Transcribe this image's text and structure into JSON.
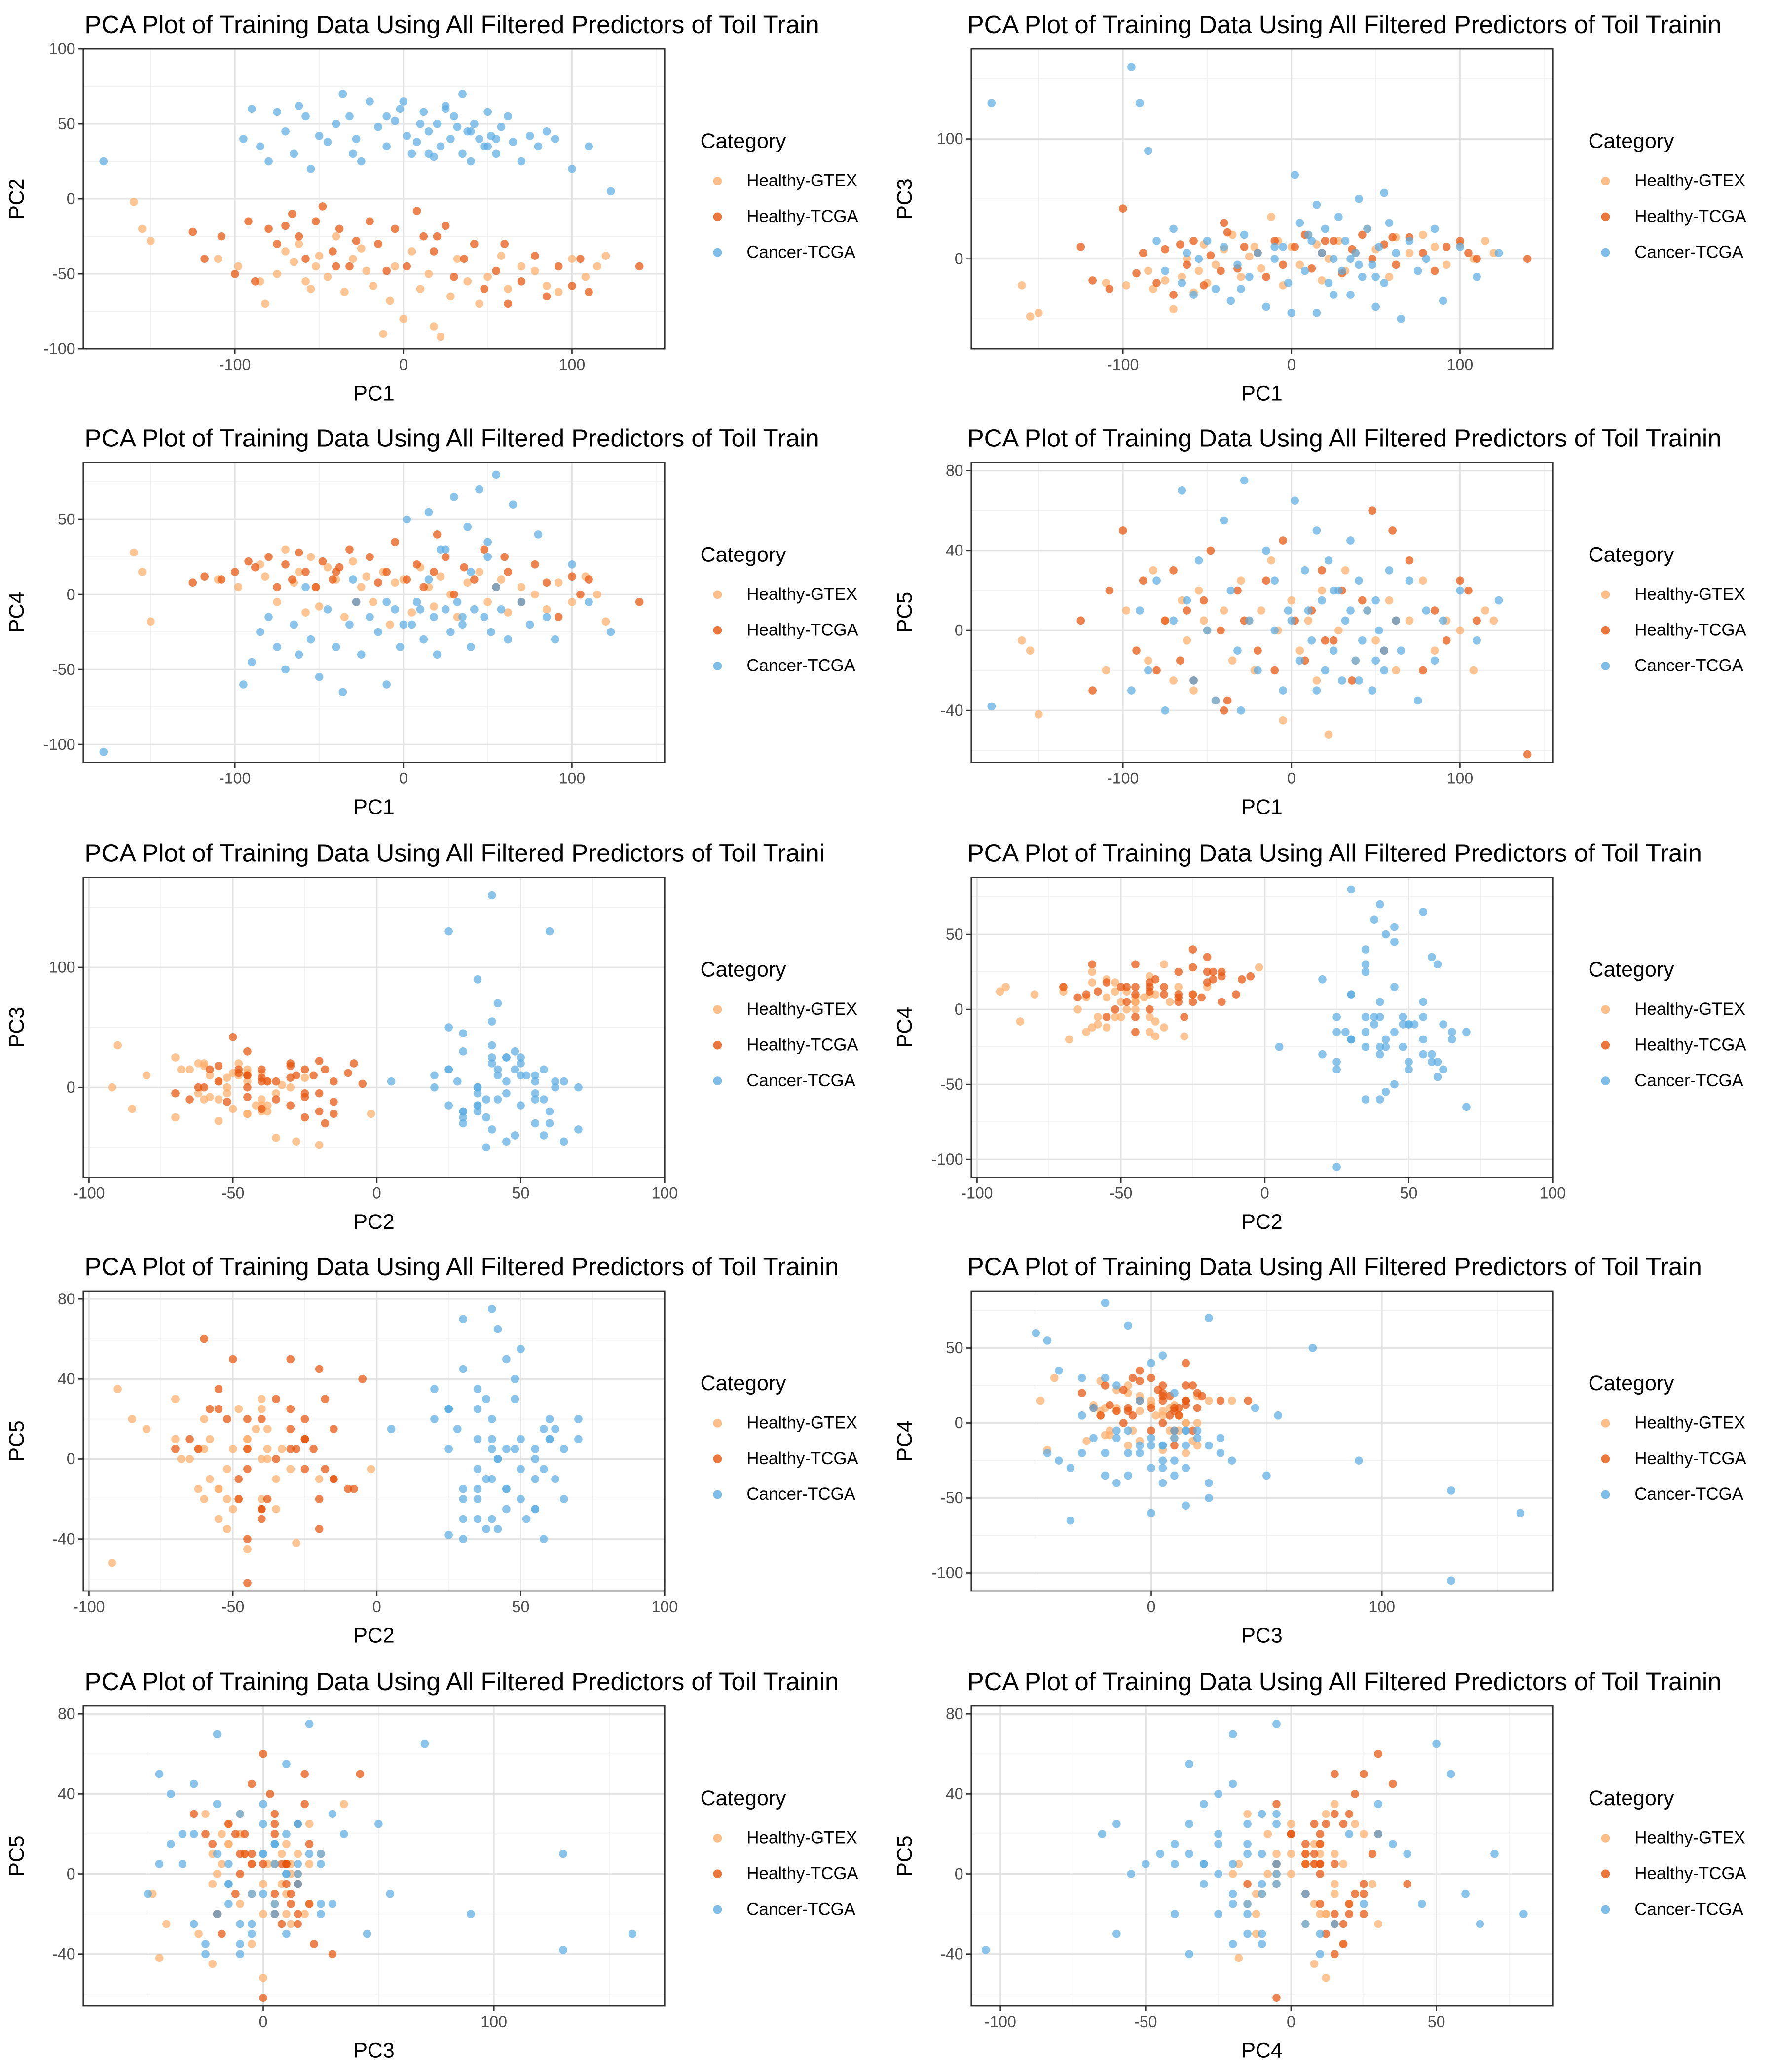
{
  "legend": {
    "title": "Category",
    "entries": [
      {
        "label": "Healthy-GTEX",
        "color": "#FDAE6B"
      },
      {
        "label": "Healthy-TCGA",
        "color": "#E6550D"
      },
      {
        "label": "Cancer-TCGA",
        "color": "#5DADE2"
      }
    ]
  },
  "chart_data": [
    {
      "type": "scatter",
      "title": "PCA Plot of Training Data Using All Filtered Predictors of Toil Train",
      "xlabel": "PC1",
      "ylabel": "PC2",
      "xlim": [
        -190,
        155
      ],
      "ylim": [
        -100,
        100
      ],
      "xticks": [
        -100,
        0,
        100
      ],
      "yticks": [
        -100,
        -50,
        0,
        50,
        100
      ],
      "grid": true,
      "legend_position": "right"
    },
    {
      "type": "scatter",
      "title": "PCA Plot of Training Data Using All Filtered Predictors of Toil Trainin",
      "xlabel": "PC1",
      "ylabel": "PC3",
      "xlim": [
        -190,
        155
      ],
      "ylim": [
        -75,
        175
      ],
      "xticks": [
        -100,
        0,
        100
      ],
      "yticks": [
        0,
        100
      ],
      "grid": true,
      "legend_position": "right"
    },
    {
      "type": "scatter",
      "title": "PCA Plot of Training Data Using All Filtered Predictors of Toil Train",
      "xlabel": "PC1",
      "ylabel": "PC4",
      "xlim": [
        -190,
        155
      ],
      "ylim": [
        -112,
        88
      ],
      "xticks": [
        -100,
        0,
        100
      ],
      "yticks": [
        -100,
        -50,
        0,
        50
      ],
      "grid": true,
      "legend_position": "right"
    },
    {
      "type": "scatter",
      "title": "PCA Plot of Training Data Using All Filtered Predictors of Toil Trainin",
      "xlabel": "PC1",
      "ylabel": "PC5",
      "xlim": [
        -190,
        155
      ],
      "ylim": [
        -66,
        84
      ],
      "xticks": [
        -100,
        0,
        100
      ],
      "yticks": [
        -40,
        0,
        40,
        80
      ],
      "grid": true,
      "legend_position": "right"
    },
    {
      "type": "scatter",
      "title": "PCA Plot of Training Data Using All Filtered Predictors of Toil Traini",
      "xlabel": "PC2",
      "ylabel": "PC3",
      "xlim": [
        -102,
        100
      ],
      "ylim": [
        -75,
        175
      ],
      "xticks": [
        -100,
        -50,
        0,
        50,
        100
      ],
      "yticks": [
        0,
        100
      ],
      "grid": true,
      "legend_position": "right"
    },
    {
      "type": "scatter",
      "title": "PCA Plot of Training Data Using All Filtered Predictors of Toil Train",
      "xlabel": "PC2",
      "ylabel": "PC4",
      "xlim": [
        -102,
        100
      ],
      "ylim": [
        -112,
        88
      ],
      "xticks": [
        -100,
        -50,
        0,
        50,
        100
      ],
      "yticks": [
        -100,
        -50,
        0,
        50
      ],
      "grid": true,
      "legend_position": "right"
    },
    {
      "type": "scatter",
      "title": "PCA Plot of Training Data Using All Filtered Predictors of Toil Trainin",
      "xlabel": "PC2",
      "ylabel": "PC5",
      "xlim": [
        -102,
        100
      ],
      "ylim": [
        -66,
        84
      ],
      "xticks": [
        -100,
        -50,
        0,
        50,
        100
      ],
      "yticks": [
        -40,
        0,
        40,
        80
      ],
      "grid": true,
      "legend_position": "right"
    },
    {
      "type": "scatter",
      "title": "PCA Plot of Training Data Using All Filtered Predictors of Toil Train",
      "xlabel": "PC3",
      "ylabel": "PC4",
      "xlim": [
        -78,
        174
      ],
      "ylim": [
        -112,
        88
      ],
      "xticks": [
        0,
        100
      ],
      "yticks": [
        -100,
        -50,
        0,
        50
      ],
      "grid": true,
      "legend_position": "right"
    },
    {
      "type": "scatter",
      "title": "PCA Plot of Training Data Using All Filtered Predictors of Toil Trainin",
      "xlabel": "PC3",
      "ylabel": "PC5",
      "xlim": [
        -78,
        174
      ],
      "ylim": [
        -66,
        84
      ],
      "xticks": [
        0,
        100
      ],
      "yticks": [
        -40,
        0,
        40,
        80
      ],
      "grid": true,
      "legend_position": "right"
    },
    {
      "type": "scatter",
      "title": "PCA Plot of Training Data Using All Filtered Predictors of Toil Trainin",
      "xlabel": "PC4",
      "ylabel": "PC5",
      "xlim": [
        -110,
        90
      ],
      "ylim": [
        -66,
        84
      ],
      "xticks": [
        -100,
        -50,
        0,
        50
      ],
      "yticks": [
        -40,
        0,
        40,
        80
      ],
      "grid": true,
      "legend_position": "right"
    }
  ],
  "points": {
    "pc1": [
      -160,
      -155,
      -150,
      -110,
      -98,
      -85,
      -82,
      -75,
      -70,
      -65,
      -62,
      -58,
      -55,
      -52,
      -50,
      -45,
      -40,
      -35,
      -30,
      -25,
      -22,
      -18,
      -12,
      -8,
      -5,
      0,
      5,
      10,
      15,
      18,
      22,
      28,
      32,
      38,
      45,
      50,
      58,
      62,
      70,
      78,
      85,
      92,
      100,
      108,
      115,
      120,
      -125,
      -118,
      -108,
      -100,
      -92,
      -88,
      -80,
      -75,
      -70,
      -66,
      -62,
      -58,
      -52,
      -48,
      -42,
      -38,
      -32,
      -28,
      -20,
      -15,
      -10,
      -5,
      2,
      8,
      12,
      18,
      25,
      30,
      36,
      42,
      48,
      55,
      62,
      70,
      78,
      85,
      92,
      100,
      105,
      110,
      140,
      20,
      -40,
      60,
      -178,
      -95,
      -90,
      -85,
      -80,
      -75,
      -70,
      -65,
      -62,
      -58,
      -55,
      -50,
      -45,
      -40,
      -36,
      -32,
      -28,
      -25,
      -20,
      -15,
      -10,
      -5,
      -2,
      2,
      5,
      8,
      12,
      15,
      18,
      20,
      22,
      25,
      28,
      30,
      32,
      35,
      38,
      40,
      42,
      45,
      48,
      50,
      52,
      55,
      58,
      62,
      65,
      70,
      75,
      80,
      85,
      90,
      100,
      110,
      123,
      -30,
      10,
      40,
      -10,
      25,
      55,
      0,
      15,
      35,
      50
    ],
    "pc2": [
      -2,
      -20,
      -28,
      -40,
      -45,
      -55,
      -70,
      -50,
      -35,
      -42,
      -30,
      -55,
      -60,
      -45,
      -38,
      -52,
      -25,
      -62,
      -40,
      -33,
      -48,
      -58,
      -90,
      -68,
      -45,
      -80,
      -35,
      -60,
      -50,
      -85,
      -92,
      -65,
      -40,
      -55,
      -70,
      -52,
      -38,
      -60,
      -45,
      -48,
      -58,
      -62,
      -40,
      -52,
      -45,
      -38,
      -22,
      -40,
      -25,
      -50,
      -15,
      -55,
      -20,
      -30,
      -18,
      -10,
      -25,
      -40,
      -15,
      -5,
      -35,
      -20,
      -45,
      -28,
      -15,
      -30,
      -48,
      -20,
      -45,
      -8,
      -25,
      -35,
      -18,
      -52,
      -40,
      -30,
      -60,
      -48,
      -70,
      -55,
      -38,
      -65,
      -45,
      -58,
      -40,
      -62,
      -45,
      -25,
      -45,
      -30,
      25,
      40,
      60,
      35,
      25,
      58,
      45,
      30,
      62,
      55,
      20,
      42,
      38,
      50,
      70,
      55,
      40,
      25,
      65,
      48,
      35,
      52,
      60,
      42,
      30,
      38,
      58,
      45,
      28,
      50,
      35,
      62,
      40,
      55,
      48,
      30,
      45,
      25,
      50,
      40,
      35,
      58,
      42,
      30,
      48,
      55,
      38,
      25,
      42,
      35,
      45,
      40,
      20,
      35,
      5,
      30,
      50,
      45,
      55,
      60,
      40,
      65,
      30,
      70,
      35
    ],
    "pc3": [
      -22,
      -48,
      -45,
      -20,
      -22,
      -10,
      -25,
      -18,
      -42,
      -15,
      0,
      -28,
      -10,
      12,
      -20,
      -5,
      8,
      20,
      -15,
      2,
      10,
      -8,
      35,
      15,
      -22,
      10,
      -5,
      20,
      12,
      -18,
      0,
      15,
      -10,
      5,
      25,
      8,
      -15,
      18,
      5,
      20,
      10,
      -5,
      12,
      0,
      15,
      5,
      10,
      -18,
      -25,
      42,
      -12,
      5,
      -20,
      8,
      -30,
      12,
      -5,
      15,
      -22,
      3,
      -10,
      22,
      -8,
      10,
      5,
      -15,
      15,
      -5,
      10,
      20,
      -8,
      5,
      15,
      -12,
      8,
      20,
      0,
      12,
      -5,
      18,
      5,
      -10,
      10,
      15,
      5,
      0,
      0,
      15,
      30,
      18,
      130,
      160,
      130,
      90,
      15,
      -10,
      25,
      -20,
      5,
      -30,
      0,
      15,
      -25,
      10,
      -35,
      -5,
      20,
      -15,
      5,
      -40,
      0,
      10,
      -20,
      70,
      30,
      -10,
      15,
      -45,
      5,
      25,
      -20,
      0,
      35,
      -10,
      15,
      -30,
      5,
      50,
      -15,
      25,
      -5,
      -40,
      10,
      -20,
      30,
      5,
      -50,
      15,
      -10,
      0,
      25,
      -35,
      10,
      -15,
      5,
      -25,
      20,
      -5,
      10,
      -30,
      55,
      -45,
      45,
      0,
      -15
    ],
    "pc4": [
      28,
      15,
      -18,
      10,
      5,
      20,
      12,
      -5,
      30,
      8,
      15,
      -12,
      25,
      5,
      -8,
      18,
      10,
      -15,
      22,
      5,
      12,
      -5,
      15,
      -20,
      8,
      10,
      -12,
      18,
      5,
      -8,
      12,
      0,
      -15,
      8,
      15,
      -5,
      10,
      -12,
      5,
      0,
      -10,
      8,
      -5,
      12,
      0,
      -18,
      8,
      12,
      10,
      15,
      22,
      18,
      25,
      5,
      20,
      10,
      28,
      15,
      5,
      22,
      10,
      18,
      30,
      -5,
      25,
      8,
      15,
      35,
      10,
      20,
      5,
      15,
      25,
      0,
      18,
      10,
      30,
      5,
      15,
      -5,
      20,
      8,
      -15,
      12,
      0,
      10,
      -5,
      40,
      15,
      25,
      -105,
      -60,
      -45,
      -25,
      -15,
      -35,
      -50,
      -20,
      -40,
      5,
      -30,
      -55,
      -10,
      -35,
      -65,
      -20,
      -5,
      -40,
      -15,
      -25,
      -60,
      -10,
      -35,
      50,
      -20,
      -5,
      -30,
      55,
      -15,
      -40,
      30,
      -10,
      -25,
      65,
      -5,
      -20,
      45,
      -35,
      -10,
      70,
      -15,
      35,
      -25,
      80,
      -10,
      -30,
      60,
      -5,
      -20,
      40,
      -15,
      -30,
      20,
      -5,
      -25,
      10,
      -10,
      15,
      -5,
      30,
      5,
      -20,
      10,
      -15,
      25
    ],
    "pc5": [
      -5,
      -10,
      -42,
      -20,
      10,
      -15,
      30,
      5,
      -25,
      15,
      -5,
      -30,
      20,
      5,
      0,
      -35,
      10,
      -15,
      25,
      5,
      -20,
      10,
      35,
      0,
      -45,
      15,
      -10,
      5,
      -25,
      20,
      -52,
      0,
      30,
      -15,
      10,
      -5,
      15,
      -20,
      5,
      25,
      -10,
      5,
      0,
      -20,
      10,
      5,
      5,
      -30,
      20,
      50,
      -10,
      25,
      -20,
      5,
      30,
      -15,
      10,
      -25,
      15,
      40,
      0,
      -35,
      20,
      5,
      -10,
      25,
      -20,
      45,
      5,
      -15,
      10,
      30,
      -5,
      20,
      -25,
      15,
      60,
      -10,
      5,
      35,
      -20,
      10,
      -5,
      25,
      20,
      5,
      -62,
      -5,
      -40,
      50,
      -38,
      -30,
      10,
      -20,
      25,
      -40,
      5,
      70,
      15,
      -25,
      35,
      0,
      -35,
      55,
      20,
      -10,
      75,
      5,
      -20,
      40,
      25,
      -30,
      10,
      65,
      -15,
      30,
      -5,
      50,
      15,
      -20,
      35,
      -10,
      20,
      -25,
      5,
      45,
      -15,
      25,
      -5,
      10,
      -30,
      15,
      0,
      -20,
      30,
      5,
      -10,
      25,
      -35,
      10,
      -15,
      5,
      20,
      -5,
      15,
      -40,
      10,
      -25,
      0,
      20,
      -10,
      5,
      -30,
      10,
      -15
    ],
    "cat": [
      0,
      0,
      0,
      0,
      0,
      0,
      0,
      0,
      0,
      0,
      0,
      0,
      0,
      0,
      0,
      0,
      0,
      0,
      0,
      0,
      0,
      0,
      0,
      0,
      0,
      0,
      0,
      0,
      0,
      0,
      0,
      0,
      0,
      0,
      0,
      0,
      0,
      0,
      0,
      0,
      0,
      0,
      0,
      0,
      0,
      0,
      1,
      1,
      1,
      1,
      1,
      1,
      1,
      1,
      1,
      1,
      1,
      1,
      1,
      1,
      1,
      1,
      1,
      1,
      1,
      1,
      1,
      1,
      1,
      1,
      1,
      1,
      1,
      1,
      1,
      1,
      1,
      1,
      1,
      1,
      1,
      1,
      1,
      1,
      1,
      1,
      1,
      1,
      1,
      1,
      2,
      2,
      2,
      2,
      2,
      2,
      2,
      2,
      2,
      2,
      2,
      2,
      2,
      2,
      2,
      2,
      2,
      2,
      2,
      2,
      2,
      2,
      2,
      2,
      2,
      2,
      2,
      2,
      2,
      2,
      2,
      2,
      2,
      2,
      2,
      2,
      2,
      2,
      2,
      2,
      2,
      2,
      2,
      2,
      2,
      2,
      2,
      2,
      2,
      2,
      2,
      2,
      2,
      2,
      2,
      2,
      2,
      2,
      2,
      2,
      2,
      2,
      2,
      2,
      2
    ]
  }
}
